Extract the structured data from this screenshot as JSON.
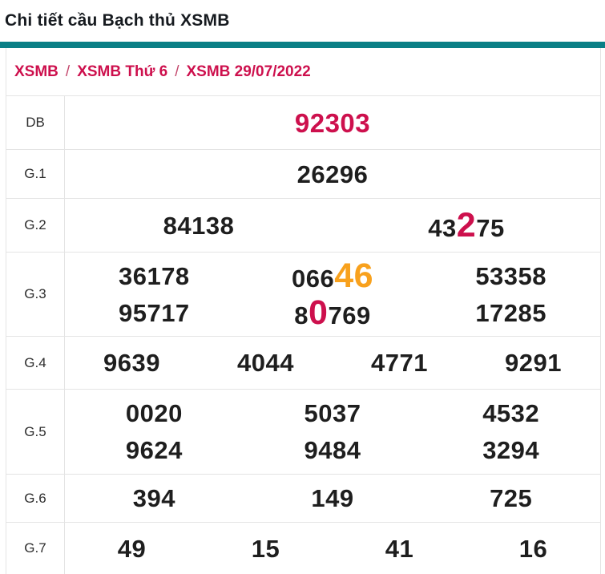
{
  "page": {
    "title": "Chi tiết cầu Bạch thủ XSMB"
  },
  "breadcrumb": {
    "separator": "/",
    "items": [
      "XSMB",
      "XSMB Thứ 6",
      "XSMB 29/07/2022"
    ]
  },
  "colors": {
    "teal_accent": "#0a7f86",
    "crimson_highlight": "#cd104d",
    "orange_highlight": "#f8a11d",
    "number_ink": "#1e1e1e",
    "border": "#e4e4e4"
  },
  "table": {
    "rows": [
      {
        "label": "DB",
        "lines": [
          [
            [
              {
                "t": "92303",
                "color": "crimson"
              }
            ]
          ]
        ]
      },
      {
        "label": "G.1",
        "lines": [
          [
            [
              {
                "t": "26296"
              }
            ]
          ]
        ]
      },
      {
        "label": "G.2",
        "lines": [
          [
            [
              {
                "t": "84138"
              }
            ],
            [
              {
                "t": "43"
              },
              {
                "t": "2",
                "color": "crimson",
                "big": true
              },
              {
                "t": "75"
              }
            ]
          ]
        ]
      },
      {
        "label": "G.3",
        "lines": [
          [
            [
              {
                "t": "36178"
              }
            ],
            [
              {
                "t": "066"
              },
              {
                "t": "46",
                "color": "orange",
                "big": true
              }
            ],
            [
              {
                "t": "53358"
              }
            ]
          ],
          [
            [
              {
                "t": "95717"
              }
            ],
            [
              {
                "t": "8"
              },
              {
                "t": "0",
                "color": "crimson",
                "big": true
              },
              {
                "t": "769"
              }
            ],
            [
              {
                "t": "17285"
              }
            ]
          ]
        ]
      },
      {
        "label": "G.4",
        "lines": [
          [
            [
              {
                "t": "9639"
              }
            ],
            [
              {
                "t": "4044"
              }
            ],
            [
              {
                "t": "4771"
              }
            ],
            [
              {
                "t": "9291"
              }
            ]
          ]
        ]
      },
      {
        "label": "G.5",
        "lines": [
          [
            [
              {
                "t": "0020"
              }
            ],
            [
              {
                "t": "5037"
              }
            ],
            [
              {
                "t": "4532"
              }
            ]
          ],
          [
            [
              {
                "t": "9624"
              }
            ],
            [
              {
                "t": "9484"
              }
            ],
            [
              {
                "t": "3294"
              }
            ]
          ]
        ]
      },
      {
        "label": "G.6",
        "lines": [
          [
            [
              {
                "t": "394"
              }
            ],
            [
              {
                "t": "149"
              }
            ],
            [
              {
                "t": "725"
              }
            ]
          ]
        ]
      },
      {
        "label": "G.7",
        "lines": [
          [
            [
              {
                "t": "49"
              }
            ],
            [
              {
                "t": "15"
              }
            ],
            [
              {
                "t": "41"
              }
            ],
            [
              {
                "t": "16"
              }
            ]
          ]
        ]
      }
    ]
  }
}
